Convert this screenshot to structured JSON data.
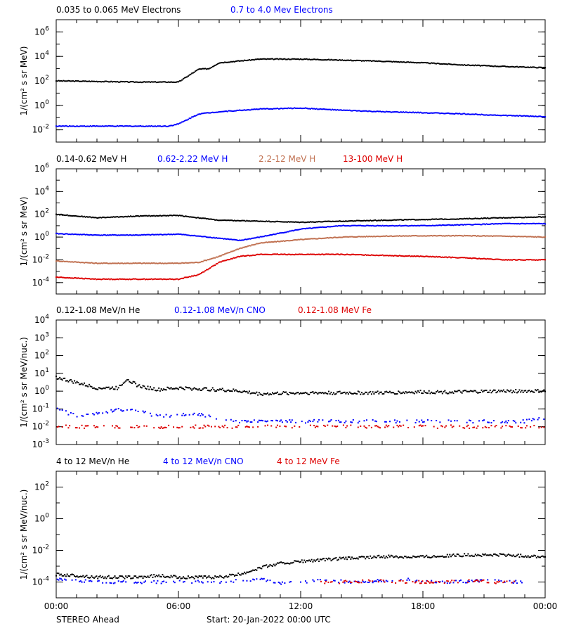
{
  "chart_data": [
    {
      "type": "scatter",
      "ylabel": "1/(cm² s sr MeV)",
      "yscale": "log",
      "ylim_exp": [
        -3,
        7
      ],
      "ytick_exp": [
        -2,
        0,
        2,
        4,
        6
      ],
      "xlim": [
        0,
        24
      ],
      "series": [
        {
          "name": "0.035 to 0.065 MeV Electrons",
          "color": "#000000",
          "x": [
            0,
            2,
            4,
            6,
            7,
            7.5,
            8,
            10,
            12,
            14,
            16,
            18,
            20,
            22,
            24
          ],
          "y": [
            100,
            90,
            80,
            80,
            900,
            1000,
            3000,
            6000,
            6000,
            5000,
            4000,
            3000,
            2000,
            1500,
            1200
          ]
        },
        {
          "name": "0.7 to 4.0 Mev Electrons",
          "color": "#0000ff",
          "x": [
            0,
            2,
            4,
            5.5,
            6,
            7,
            8,
            10,
            12,
            14,
            16,
            18,
            20,
            22,
            24
          ],
          "y": [
            0.02,
            0.02,
            0.02,
            0.02,
            0.03,
            0.2,
            0.3,
            0.5,
            0.6,
            0.4,
            0.3,
            0.25,
            0.2,
            0.15,
            0.12
          ]
        }
      ]
    },
    {
      "type": "scatter",
      "ylabel": "1/(cm² s sr MeV)",
      "yscale": "log",
      "ylim_exp": [
        -5,
        6
      ],
      "ytick_exp": [
        -4,
        -2,
        0,
        2,
        4,
        6
      ],
      "xlim": [
        0,
        24
      ],
      "series": [
        {
          "name": "0.14-0.62 MeV H",
          "color": "#000000",
          "x": [
            0,
            2,
            4,
            6,
            8,
            10,
            12,
            14,
            16,
            18,
            20,
            22,
            24
          ],
          "y": [
            100,
            50,
            70,
            80,
            30,
            25,
            20,
            25,
            30,
            35,
            40,
            50,
            60
          ]
        },
        {
          "name": "0.62-2.22 MeV H",
          "color": "#0000ff",
          "x": [
            0,
            2,
            4,
            6,
            8,
            9,
            10,
            12,
            14,
            16,
            18,
            20,
            22,
            24
          ],
          "y": [
            2,
            1.5,
            1.5,
            1.8,
            0.8,
            0.5,
            1,
            5,
            10,
            10,
            10,
            12,
            15,
            15
          ]
        },
        {
          "name": "2.2-12 MeV H",
          "color": "#c07050",
          "x": [
            0,
            2,
            4,
            6,
            7,
            8,
            9,
            10,
            12,
            14,
            16,
            18,
            20,
            22,
            24
          ],
          "y": [
            0.008,
            0.005,
            0.005,
            0.005,
            0.006,
            0.02,
            0.1,
            0.3,
            0.6,
            1,
            1.2,
            1.3,
            1.3,
            1.2,
            1.0
          ]
        },
        {
          "name": "13-100 MeV H",
          "color": "#dd0000",
          "x": [
            0,
            2,
            4,
            6,
            7,
            8,
            9,
            10,
            12,
            14,
            16,
            18,
            20,
            22,
            24
          ],
          "y": [
            0.0003,
            0.0002,
            0.0002,
            0.0002,
            0.0005,
            0.006,
            0.02,
            0.03,
            0.03,
            0.03,
            0.025,
            0.02,
            0.015,
            0.01,
            0.01
          ]
        }
      ]
    },
    {
      "type": "scatter",
      "ylabel": "1/(cm² s sr MeV/nuc.)",
      "yscale": "log",
      "ylim_exp": [
        -3,
        4
      ],
      "ytick_exp": [
        -3,
        -2,
        -1,
        0,
        1,
        2,
        3,
        4
      ],
      "xlim": [
        0,
        24
      ],
      "series": [
        {
          "name": "0.12-1.08 MeV/n He",
          "color": "#000000",
          "x": [
            0,
            1,
            2,
            3,
            3.5,
            4,
            5,
            6,
            8,
            9,
            10,
            12,
            14,
            16,
            18,
            20,
            22,
            24
          ],
          "y": [
            6,
            3,
            1.5,
            1.5,
            5,
            2,
            1.2,
            1.5,
            1.2,
            1,
            0.7,
            0.8,
            0.8,
            0.8,
            0.9,
            0.9,
            1.0,
            1.0
          ]
        },
        {
          "name": "0.12-1.08 MeV/n CNO",
          "color": "#0000ff",
          "x": [
            0,
            1,
            3.5,
            5,
            7,
            9,
            11,
            13,
            15,
            17,
            19,
            21,
            23,
            24
          ],
          "y": [
            0.1,
            0.04,
            0.1,
            0.04,
            0.05,
            0.02,
            0.02,
            0.02,
            0.02,
            0.02,
            0.02,
            0.02,
            0.02,
            0.03
          ]
        },
        {
          "name": "0.12-1.08 MeV Fe",
          "color": "#dd0000",
          "x": [
            0,
            2,
            4,
            6,
            8,
            10,
            12,
            14,
            16,
            18,
            20,
            22,
            24
          ],
          "y": [
            0.01,
            0.01,
            0.01,
            0.01,
            0.01,
            0.01,
            0.01,
            0.01,
            0.01,
            0.01,
            0.01,
            0.01,
            0.01
          ]
        }
      ]
    },
    {
      "type": "scatter",
      "ylabel": "1/(cm² s sr MeV/nuc.)",
      "yscale": "log",
      "ylim_exp": [
        -5,
        3
      ],
      "ytick_exp": [
        -4,
        -2,
        0,
        2
      ],
      "xlim": [
        0,
        24
      ],
      "series": [
        {
          "name": "4 to 12 MeV/n He",
          "color": "#000000",
          "x": [
            0,
            1,
            2,
            3,
            4,
            5,
            6,
            7,
            8,
            9,
            10,
            11,
            12,
            14,
            16,
            18,
            20,
            22,
            24
          ],
          "y": [
            0.0003,
            0.00025,
            0.0002,
            0.0002,
            0.0002,
            0.00025,
            0.0002,
            0.0002,
            0.0002,
            0.0003,
            0.0008,
            0.0015,
            0.002,
            0.003,
            0.004,
            0.004,
            0.005,
            0.005,
            0.004
          ]
        },
        {
          "name": "4 to 12 MeV/n CNO",
          "color": "#0000ff",
          "x": [
            0,
            2,
            5,
            8,
            10,
            11,
            13,
            15,
            17,
            19,
            21,
            23
          ],
          "y": [
            0.00015,
            0.0001,
            0.0001,
            0.0001,
            0.00015,
            8e-05,
            0.00012,
            0.0001,
            0.00015,
            0.0001,
            0.00012,
            0.0001
          ]
        },
        {
          "name": "4 to 12 MeV Fe",
          "color": "#dd0000",
          "x": [
            13,
            14,
            15.5,
            17,
            19,
            20.5,
            21.5,
            22.5
          ],
          "y": [
            0.0001,
            0.0001,
            0.00012,
            0.0001,
            0.0001,
            0.00012,
            0.0001,
            0.0001
          ]
        }
      ]
    }
  ],
  "x_axis": {
    "tick_labels": [
      "00:00",
      "06:00",
      "12:00",
      "18:00",
      "00:00"
    ]
  },
  "footer": {
    "spacecraft": "STEREO Ahead",
    "start_label": "Start: 20-Jan-2022 00:00 UTC"
  }
}
